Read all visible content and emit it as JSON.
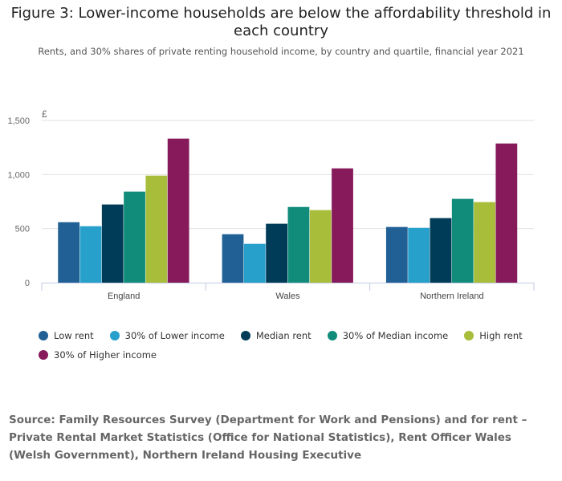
{
  "title": "Figure 3: Lower-income households are below the affordability threshold in each country",
  "subtitle": "Rents, and 30% shares of private renting household income, by country and quartile, financial year 2021",
  "source": "Source: Family Resources Survey (Department for Work and Pensions) and for rent – Private Rental Market Statistics (Office for National Statistics), Rent Officer Wales (Welsh Government), Northern Ireland Housing Executive",
  "chart_data": {
    "type": "bar",
    "ylabel": "£",
    "ylim": [
      0,
      1500
    ],
    "yticks": [
      "0",
      "500",
      "1,000",
      "1,500"
    ],
    "ytick_values": [
      0,
      500,
      1000,
      1500
    ],
    "grid": true,
    "legend_position": "bottom",
    "categories": [
      "England",
      "Wales",
      "Northern Ireland"
    ],
    "series": [
      {
        "name": "Low rent",
        "color": "#206095",
        "values": [
          559,
          448,
          515
        ]
      },
      {
        "name": "30% of Lower income",
        "color": "#27a0cc",
        "values": [
          522,
          359,
          507
        ]
      },
      {
        "name": "Median rent",
        "color": "#003c57",
        "values": [
          723,
          545,
          597
        ]
      },
      {
        "name": "30% of Median income",
        "color": "#118c7b",
        "values": [
          842,
          700,
          775
        ]
      },
      {
        "name": "High rent",
        "color": "#a8bd3a",
        "values": [
          990,
          671,
          745
        ]
      },
      {
        "name": "30% of Higher income",
        "color": "#871a5b",
        "values": [
          1332,
          1057,
          1287
        ]
      }
    ]
  }
}
